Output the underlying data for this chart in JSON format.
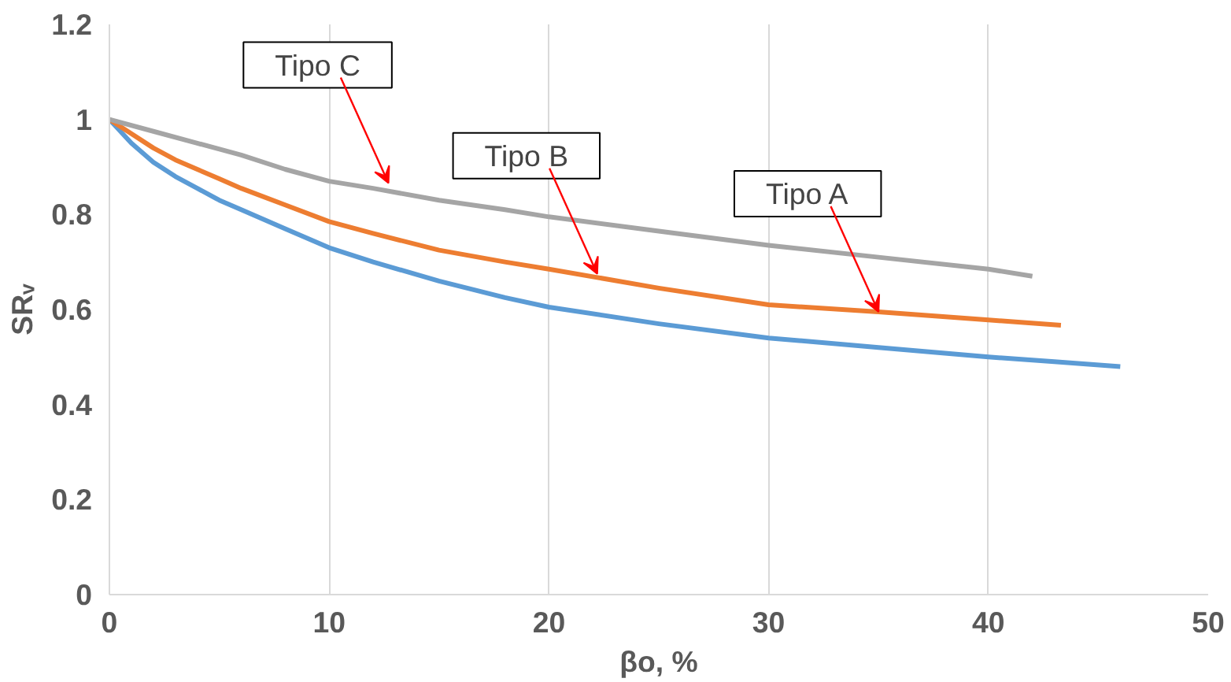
{
  "chart_data": {
    "type": "line",
    "xlabel": "βo, %",
    "ylabel": "SRᵥ",
    "xlim": [
      0,
      50
    ],
    "ylim": [
      0,
      1.2
    ],
    "xticks": [
      0,
      10,
      20,
      30,
      40,
      50
    ],
    "yticks": [
      0,
      0.2,
      0.4,
      0.6,
      0.8,
      1,
      1.2
    ],
    "grid": "x",
    "marker": "none",
    "line_style": "solid",
    "series": [
      {
        "color": "#5b9bd5",
        "x": [
          0,
          1,
          2,
          3,
          4,
          5,
          6,
          8,
          10,
          12,
          15,
          18,
          20,
          25,
          30,
          35,
          40,
          43,
          46
        ],
        "values": [
          1,
          0.95,
          0.91,
          0.88,
          0.855,
          0.83,
          0.81,
          0.77,
          0.73,
          0.7,
          0.66,
          0.625,
          0.605,
          0.57,
          0.54,
          0.52,
          0.5,
          0.49,
          0.48
        ]
      },
      {
        "color": "#ed7d31",
        "x": [
          0,
          1,
          2,
          3,
          4,
          5,
          6,
          8,
          10,
          12,
          15,
          18,
          20,
          25,
          30,
          35,
          40,
          43.3
        ],
        "values": [
          1,
          0.97,
          0.94,
          0.915,
          0.895,
          0.875,
          0.855,
          0.82,
          0.785,
          0.76,
          0.725,
          0.7,
          0.685,
          0.645,
          0.61,
          0.595,
          0.578,
          0.567
        ]
      },
      {
        "color": "#a5a5a5",
        "x": [
          0,
          2,
          4,
          6,
          8,
          10,
          12,
          15,
          18,
          20,
          25,
          30,
          35,
          40,
          42
        ],
        "values": [
          1,
          0.975,
          0.95,
          0.925,
          0.895,
          0.87,
          0.855,
          0.83,
          0.81,
          0.795,
          0.765,
          0.735,
          0.71,
          0.685,
          0.67
        ]
      }
    ],
    "annotations": [
      {
        "text": "Tipo C",
        "x": 12.7,
        "y": 0.866
      },
      {
        "text": "Tipo B",
        "x": 22.2,
        "y": 0.675
      },
      {
        "text": "Tipo A",
        "x": 35,
        "y": 0.595
      }
    ]
  }
}
